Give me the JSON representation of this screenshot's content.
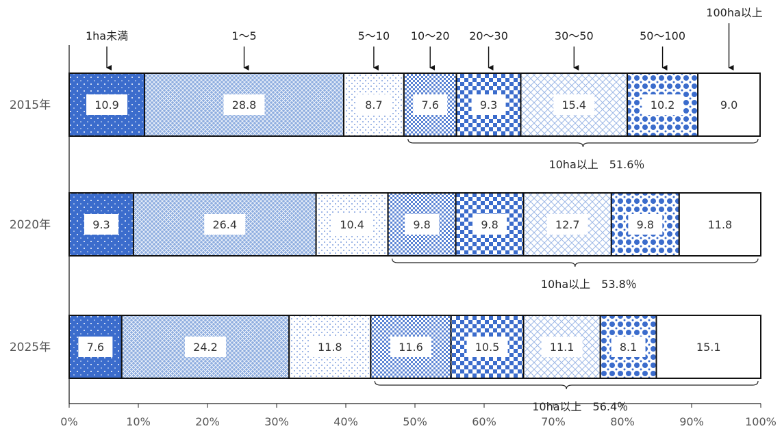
{
  "chart_data": {
    "type": "bar",
    "orientation": "horizontal",
    "stacked": true,
    "categories": [
      "2015年",
      "2020年",
      "2025年"
    ],
    "series": [
      {
        "name": "1ha未満",
        "values": [
          10.9,
          9.3,
          7.6
        ]
      },
      {
        "name": "1～5",
        "values": [
          28.8,
          26.4,
          24.2
        ]
      },
      {
        "name": "5～10",
        "values": [
          8.7,
          10.4,
          11.8
        ]
      },
      {
        "name": "10～20",
        "values": [
          7.6,
          9.8,
          11.6
        ]
      },
      {
        "name": "20～30",
        "values": [
          9.3,
          9.8,
          10.5
        ]
      },
      {
        "name": "30～50",
        "values": [
          15.4,
          12.7,
          11.1
        ]
      },
      {
        "name": "50～100",
        "values": [
          10.2,
          9.8,
          8.1
        ]
      },
      {
        "name": "100ha以上",
        "values": [
          9.0,
          11.8,
          15.1
        ]
      }
    ],
    "value_labels": [
      [
        "10.9",
        "28.8",
        "8.7",
        "7.6",
        "9.3",
        "15.4",
        "10.2",
        "9.0"
      ],
      [
        "9.3",
        "26.4",
        "10.4",
        "9.8",
        "9.8",
        "12.7",
        "9.8",
        "11.8"
      ],
      [
        "7.6",
        "24.2",
        "11.8",
        "11.6",
        "10.5",
        "11.1",
        "8.1",
        "15.1"
      ]
    ],
    "x_ticks": [
      "0%",
      "10%",
      "20%",
      "30%",
      "40%",
      "50%",
      "60%",
      "70%",
      "80%",
      "90%",
      "100%"
    ],
    "xlim": [
      0,
      100
    ],
    "annotations": [
      "10ha以上　51.6％",
      "10ha以上　53.8％",
      "10ha以上　56.4％"
    ],
    "annotation_values": [
      51.6,
      53.8,
      56.4
    ],
    "grid": false,
    "legend": "top, arrows pointing to segments"
  },
  "colors": {
    "dark_blue": "#3b6ccc",
    "mid_blue": "#4a78d0",
    "light_blue": "#9db8e6",
    "white": "#ffffff",
    "border": "#111111"
  }
}
